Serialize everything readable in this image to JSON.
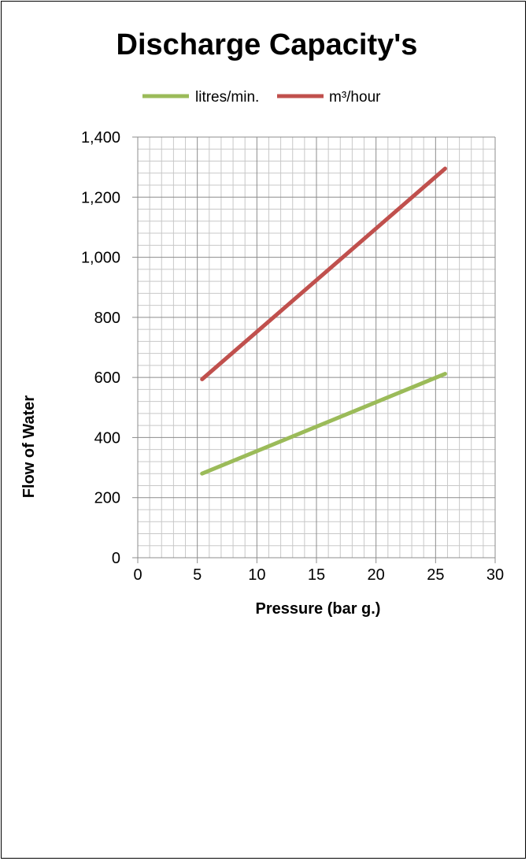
{
  "chart_data": {
    "type": "line",
    "title": "Discharge Capacity's",
    "xlabel": "Pressure (bar g.)",
    "ylabel": "Flow of Water",
    "xlim": [
      0,
      30
    ],
    "ylim": [
      0,
      1400
    ],
    "x_ticks": [
      "0",
      "5",
      "10",
      "15",
      "20",
      "25",
      "30"
    ],
    "y_ticks": [
      "0",
      "200",
      "400",
      "600",
      "800",
      "1,000",
      "1,200",
      "1,400"
    ],
    "grid": true,
    "legend_position": "top",
    "series": [
      {
        "name": "litres/min.",
        "color": "#9bbb59",
        "points": [
          [
            5.4,
            280
          ],
          [
            25.8,
            612
          ]
        ]
      },
      {
        "name": "m³/hour",
        "color": "#c0504d",
        "points": [
          [
            5.4,
            594
          ],
          [
            25.8,
            1295
          ]
        ]
      }
    ]
  }
}
